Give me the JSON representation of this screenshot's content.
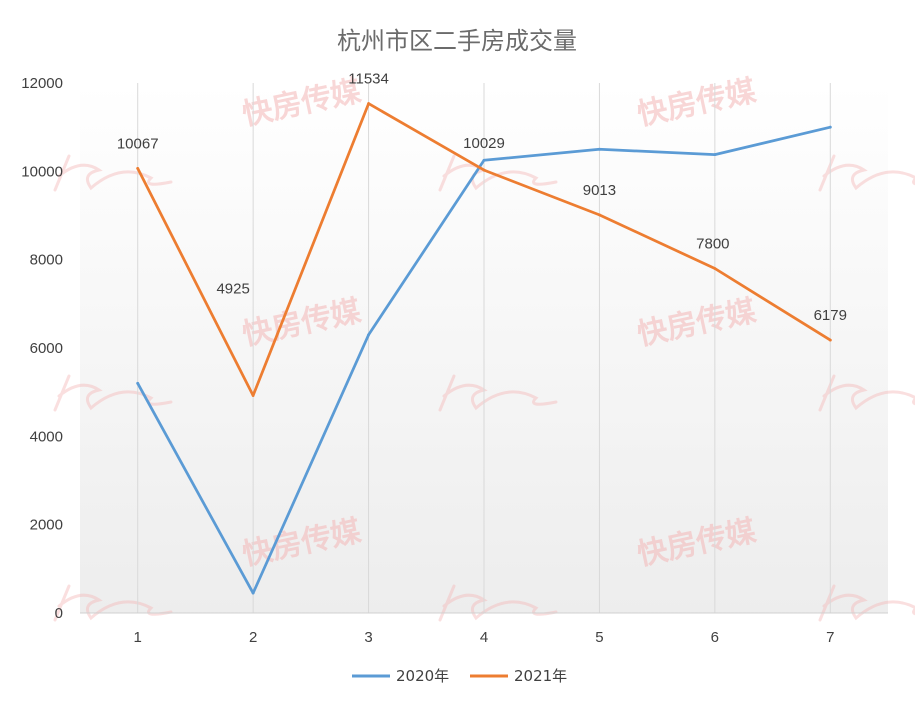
{
  "watermark": "快房传媒",
  "colors": {
    "series2020": "#5b9bd5",
    "series2021": "#ed7d31",
    "grid": "#d9d9d9",
    "watermark": "#f4b7b7"
  },
  "chart_data": {
    "type": "line",
    "title": "杭州市区二手房成交量",
    "xlabel": "",
    "ylabel": "",
    "categories": [
      "1",
      "2",
      "3",
      "4",
      "5",
      "6",
      "7"
    ],
    "ylim": [
      0,
      12000
    ],
    "yticks": [
      "0",
      "2000",
      "4000",
      "6000",
      "8000",
      "10000",
      "12000"
    ],
    "grid": "vertical",
    "legend": "bottom",
    "series": [
      {
        "name": "2020年",
        "values": [
          5200,
          450,
          6300,
          10250,
          10500,
          10380,
          11000
        ],
        "data_labels": false
      },
      {
        "name": "2021年",
        "values": [
          10067,
          4925,
          11534,
          10029,
          9013,
          7800,
          6179
        ],
        "data_labels": true
      }
    ]
  }
}
